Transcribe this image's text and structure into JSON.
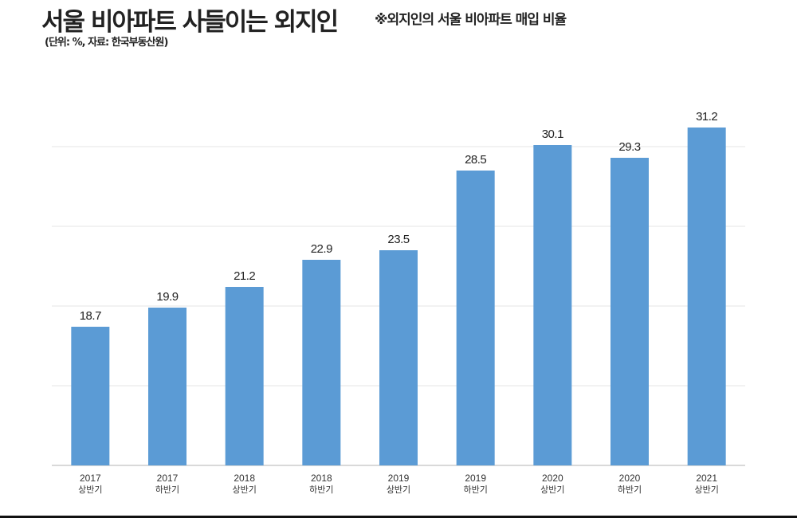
{
  "header": {
    "title": "서울 비아파트 사들이는 외지인",
    "subtitle": "※외지인의 서울 비아파트 매입 비율",
    "unit_note": "(단위: %, 자료: 한국부동산원)"
  },
  "chart_data": {
    "type": "bar",
    "title": "서울 비아파트 사들이는 외지인",
    "categories": [
      [
        "2017",
        "상반기"
      ],
      [
        "2017",
        "하반기"
      ],
      [
        "2018",
        "상반기"
      ],
      [
        "2018",
        "하반기"
      ],
      [
        "2019",
        "상반기"
      ],
      [
        "2019",
        "하반기"
      ],
      [
        "2020",
        "상반기"
      ],
      [
        "2020",
        "하반기"
      ],
      [
        "2021",
        "상반기"
      ]
    ],
    "values": [
      18.7,
      19.9,
      21.2,
      22.9,
      23.5,
      28.5,
      30.1,
      29.3,
      31.2
    ],
    "value_labels": [
      "18.7",
      "19.9",
      "21.2",
      "22.9",
      "23.5",
      "28.5",
      "30.1",
      "29.3",
      "31.2"
    ],
    "ylim": [
      10,
      30
    ],
    "gridlines": [
      10,
      15,
      20,
      25,
      30
    ],
    "grid": true,
    "y_tick_labels_shown": false,
    "bar_color": "#5b9bd5",
    "xlabel": "",
    "ylabel": ""
  }
}
